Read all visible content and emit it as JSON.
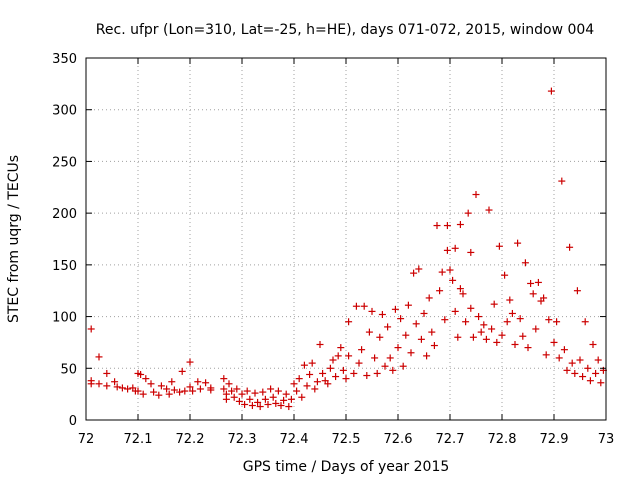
{
  "chart_data": {
    "type": "scatter",
    "title": "Rec. ufpr (Lon=310, Lat=-25, h=HE), days 071-072, 2015, window 004",
    "xlabel": "GPS time / Days of year 2015",
    "ylabel": "STEC from uqrg / TECUs",
    "xlim": [
      72,
      73
    ],
    "ylim": [
      0,
      350
    ],
    "xticks": [
      72,
      72.1,
      72.2,
      72.3,
      72.4,
      72.5,
      72.6,
      72.7,
      72.8,
      72.9,
      73
    ],
    "yticks": [
      0,
      50,
      100,
      150,
      200,
      250,
      300,
      350
    ],
    "xtick_labels": [
      "72",
      "72.1",
      "72.2",
      "72.3",
      "72.4",
      "72.5",
      "72.6",
      "72.7",
      "72.8",
      "72.9",
      "73"
    ],
    "ytick_labels": [
      "0",
      "50",
      "100",
      "150",
      "200",
      "250",
      "300",
      "350"
    ],
    "grid": true,
    "marker": "plus",
    "color": "#cc0000",
    "points": [
      [
        72.01,
        88
      ],
      [
        72.01,
        38
      ],
      [
        72.01,
        35
      ],
      [
        72.025,
        61
      ],
      [
        72.025,
        35
      ],
      [
        72.04,
        45
      ],
      [
        72.04,
        33
      ],
      [
        72.055,
        37
      ],
      [
        72.06,
        32
      ],
      [
        72.07,
        31
      ],
      [
        72.08,
        30
      ],
      [
        72.09,
        31
      ],
      [
        72.095,
        28
      ],
      [
        72.1,
        45
      ],
      [
        72.105,
        44
      ],
      [
        72.1,
        28
      ],
      [
        72.11,
        25
      ],
      [
        72.115,
        40
      ],
      [
        72.125,
        35
      ],
      [
        72.13,
        27
      ],
      [
        72.14,
        24
      ],
      [
        72.145,
        33
      ],
      [
        72.155,
        30
      ],
      [
        72.16,
        25
      ],
      [
        72.165,
        37
      ],
      [
        72.17,
        29
      ],
      [
        72.18,
        27
      ],
      [
        72.185,
        47
      ],
      [
        72.19,
        28
      ],
      [
        72.2,
        56
      ],
      [
        72.2,
        32
      ],
      [
        72.205,
        28
      ],
      [
        72.215,
        37
      ],
      [
        72.22,
        30
      ],
      [
        72.23,
        36
      ],
      [
        72.24,
        31
      ],
      [
        72.24,
        29
      ],
      [
        72.265,
        40
      ],
      [
        72.265,
        30
      ],
      [
        72.27,
        25
      ],
      [
        72.27,
        20
      ],
      [
        72.275,
        35
      ],
      [
        72.28,
        28
      ],
      [
        72.285,
        22
      ],
      [
        72.29,
        30
      ],
      [
        72.295,
        18
      ],
      [
        72.3,
        25
      ],
      [
        72.305,
        15
      ],
      [
        72.31,
        28
      ],
      [
        72.315,
        20
      ],
      [
        72.32,
        14
      ],
      [
        72.325,
        26
      ],
      [
        72.33,
        17
      ],
      [
        72.335,
        13
      ],
      [
        72.34,
        27
      ],
      [
        72.345,
        20
      ],
      [
        72.35,
        15
      ],
      [
        72.355,
        30
      ],
      [
        72.36,
        22
      ],
      [
        72.365,
        16
      ],
      [
        72.37,
        28
      ],
      [
        72.375,
        14
      ],
      [
        72.38,
        19
      ],
      [
        72.385,
        25
      ],
      [
        72.39,
        13
      ],
      [
        72.395,
        20
      ],
      [
        72.4,
        35
      ],
      [
        72.405,
        28
      ],
      [
        72.41,
        40
      ],
      [
        72.415,
        22
      ],
      [
        72.42,
        53
      ],
      [
        72.425,
        33
      ],
      [
        72.43,
        44
      ],
      [
        72.435,
        55
      ],
      [
        72.44,
        30
      ],
      [
        72.445,
        37
      ],
      [
        72.45,
        73
      ],
      [
        72.455,
        45
      ],
      [
        72.46,
        38
      ],
      [
        72.465,
        35
      ],
      [
        72.47,
        50
      ],
      [
        72.475,
        58
      ],
      [
        72.48,
        42
      ],
      [
        72.485,
        62
      ],
      [
        72.49,
        70
      ],
      [
        72.495,
        48
      ],
      [
        72.5,
        40
      ],
      [
        72.505,
        95
      ],
      [
        72.505,
        62
      ],
      [
        72.515,
        45
      ],
      [
        72.52,
        110
      ],
      [
        72.525,
        55
      ],
      [
        72.53,
        68
      ],
      [
        72.535,
        110
      ],
      [
        72.54,
        43
      ],
      [
        72.545,
        85
      ],
      [
        72.55,
        105
      ],
      [
        72.555,
        60
      ],
      [
        72.56,
        45
      ],
      [
        72.565,
        80
      ],
      [
        72.57,
        102
      ],
      [
        72.575,
        52
      ],
      [
        72.58,
        90
      ],
      [
        72.585,
        60
      ],
      [
        72.59,
        48
      ],
      [
        72.595,
        107
      ],
      [
        72.6,
        70
      ],
      [
        72.605,
        98
      ],
      [
        72.61,
        52
      ],
      [
        72.615,
        82
      ],
      [
        72.62,
        111
      ],
      [
        72.625,
        65
      ],
      [
        72.63,
        142
      ],
      [
        72.635,
        93
      ],
      [
        72.64,
        146
      ],
      [
        72.645,
        78
      ],
      [
        72.65,
        103
      ],
      [
        72.655,
        62
      ],
      [
        72.66,
        118
      ],
      [
        72.665,
        85
      ],
      [
        72.67,
        72
      ],
      [
        72.675,
        188
      ],
      [
        72.68,
        125
      ],
      [
        72.685,
        143
      ],
      [
        72.69,
        97
      ],
      [
        72.695,
        188
      ],
      [
        72.695,
        164
      ],
      [
        72.7,
        145
      ],
      [
        72.705,
        135
      ],
      [
        72.71,
        166
      ],
      [
        72.71,
        105
      ],
      [
        72.715,
        80
      ],
      [
        72.72,
        189
      ],
      [
        72.72,
        127
      ],
      [
        72.725,
        122
      ],
      [
        72.73,
        95
      ],
      [
        72.735,
        200
      ],
      [
        72.74,
        162
      ],
      [
        72.74,
        108
      ],
      [
        72.745,
        80
      ],
      [
        72.75,
        218
      ],
      [
        72.755,
        100
      ],
      [
        72.76,
        85
      ],
      [
        72.765,
        92
      ],
      [
        72.77,
        78
      ],
      [
        72.775,
        203
      ],
      [
        72.78,
        88
      ],
      [
        72.785,
        112
      ],
      [
        72.79,
        75
      ],
      [
        72.795,
        168
      ],
      [
        72.8,
        82
      ],
      [
        72.805,
        140
      ],
      [
        72.81,
        95
      ],
      [
        72.815,
        116
      ],
      [
        72.82,
        103
      ],
      [
        72.825,
        73
      ],
      [
        72.83,
        171
      ],
      [
        72.835,
        98
      ],
      [
        72.84,
        81
      ],
      [
        72.845,
        152
      ],
      [
        72.85,
        70
      ],
      [
        72.855,
        132
      ],
      [
        72.86,
        122
      ],
      [
        72.865,
        88
      ],
      [
        72.87,
        133
      ],
      [
        72.875,
        115
      ],
      [
        72.88,
        118
      ],
      [
        72.885,
        63
      ],
      [
        72.89,
        97
      ],
      [
        72.895,
        318
      ],
      [
        72.9,
        75
      ],
      [
        72.905,
        95
      ],
      [
        72.91,
        60
      ],
      [
        72.915,
        231
      ],
      [
        72.92,
        68
      ],
      [
        72.925,
        48
      ],
      [
        72.93,
        167
      ],
      [
        72.935,
        55
      ],
      [
        72.94,
        45
      ],
      [
        72.945,
        125
      ],
      [
        72.95,
        58
      ],
      [
        72.955,
        42
      ],
      [
        72.96,
        95
      ],
      [
        72.965,
        50
      ],
      [
        72.97,
        38
      ],
      [
        72.975,
        73
      ],
      [
        72.98,
        45
      ],
      [
        72.985,
        58
      ],
      [
        72.99,
        36
      ],
      [
        72.995,
        48
      ]
    ]
  }
}
